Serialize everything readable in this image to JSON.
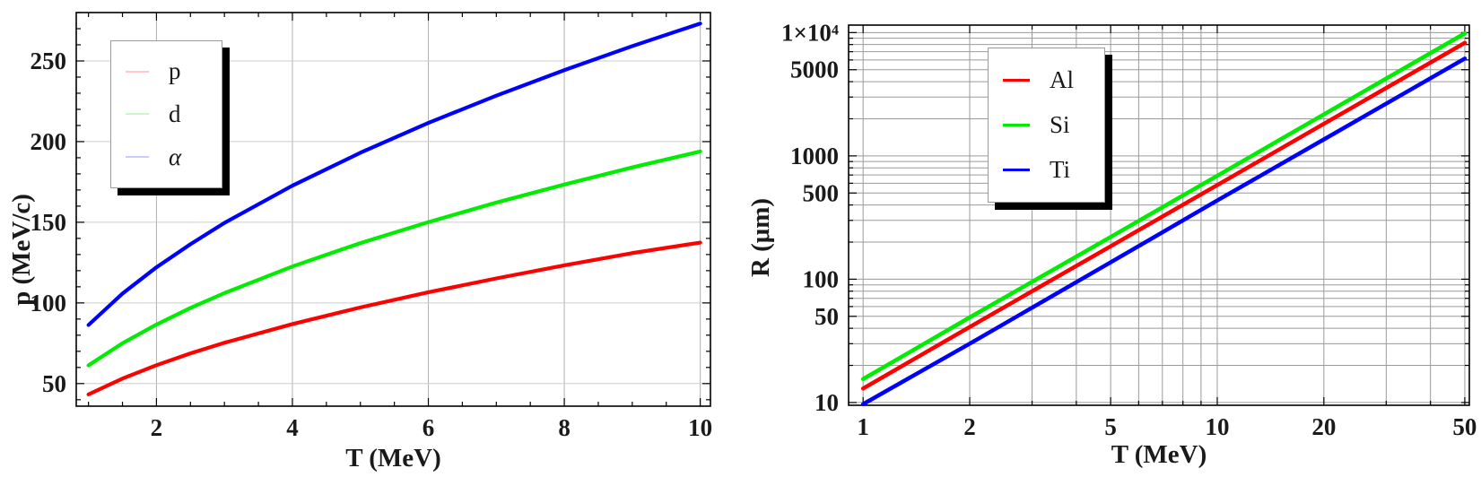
{
  "figure": {
    "background": "#ffffff"
  },
  "chart_data": [
    {
      "id": "momentum-vs-kinetic-energy",
      "type": "line",
      "title": "",
      "xlabel": "T (MeV)",
      "ylabel": "p (MeV/c)",
      "xscale": "linear",
      "yscale": "linear",
      "xlim": [
        0.82,
        10.15
      ],
      "ylim": [
        36,
        280
      ],
      "xticks": {
        "values": [
          2,
          4,
          6,
          8,
          10
        ],
        "labels": [
          "2",
          "4",
          "6",
          "8",
          "10"
        ],
        "minor_step": 0.5
      },
      "yticks": {
        "values": [
          50,
          100,
          150,
          200,
          250
        ],
        "labels": [
          "50",
          "100",
          "150",
          "200",
          "250"
        ],
        "minor_step": 10
      },
      "grid": {
        "on": true,
        "minor": false,
        "vertical_color": "#b0b0b0",
        "horizontal_color": "#cccccc"
      },
      "frame_color": "#000000",
      "legend_position": "upper-left",
      "series": [
        {
          "name": "p",
          "color": "#ff0000",
          "legend_swatch": "#ffc9c9",
          "x": [
            1,
            1.5,
            2,
            2.5,
            3,
            4,
            5,
            6,
            7,
            8,
            9,
            10
          ],
          "y": [
            43.3,
            53.1,
            61.4,
            68.7,
            75.3,
            86.9,
            97.2,
            106.6,
            115.2,
            123.3,
            130.9,
            137.4
          ]
        },
        {
          "name": "d",
          "color": "#00ec00",
          "legend_swatch": "#c9f7c9",
          "x": [
            1,
            1.5,
            2,
            2.5,
            3,
            4,
            5,
            6,
            7,
            8,
            9,
            10
          ],
          "y": [
            61.3,
            75.0,
            86.6,
            96.9,
            106.1,
            122.6,
            137.1,
            150.1,
            162.2,
            173.4,
            184.0,
            193.9
          ]
        },
        {
          "name": "α",
          "color": "#0000ff",
          "legend_swatch": "#c9cdfb",
          "x": [
            1,
            1.5,
            2,
            2.5,
            3,
            4,
            5,
            6,
            7,
            8,
            9,
            10
          ],
          "y": [
            86.3,
            105.8,
            122.1,
            136.4,
            149.6,
            172.7,
            193.1,
            211.6,
            228.5,
            244.3,
            259.2,
            273.2
          ]
        }
      ]
    },
    {
      "id": "proton-range-vs-kinetic-energy",
      "type": "line",
      "title": "",
      "xlabel": "T (MeV)",
      "ylabel": "R (μm)",
      "xscale": "log",
      "yscale": "log",
      "xlim": [
        0.91,
        51.5
      ],
      "ylim": [
        9.5,
        11500
      ],
      "xticks": {
        "values": [
          1,
          2,
          5,
          10,
          20,
          50
        ],
        "labels": [
          "1",
          "2",
          "5",
          "10",
          "20",
          "50"
        ]
      },
      "yticks": {
        "values": [
          10,
          50,
          100,
          500,
          1000,
          5000,
          10000
        ],
        "labels": [
          "10",
          "50",
          "100",
          "500",
          "1000",
          "5000",
          "1×10⁴"
        ]
      },
      "grid": {
        "on": true,
        "minor": true,
        "vertical_color": "#9a9a9a",
        "horizontal_color": "#9a9a9a"
      },
      "frame_color": "#000000",
      "legend_position": "upper-middle",
      "series": [
        {
          "name": "Al",
          "color": "#ff0000",
          "legend_swatch": "#ff0000",
          "x": [
            1,
            2,
            5,
            10,
            20,
            50
          ],
          "y": [
            13,
            41,
            185,
            580,
            1820,
            8260
          ]
        },
        {
          "name": "Si",
          "color": "#00ec00",
          "legend_swatch": "#00ec00",
          "x": [
            1,
            2,
            5,
            10,
            20,
            50
          ],
          "y": [
            15.5,
            49,
            220,
            690,
            2170,
            9850
          ]
        },
        {
          "name": "Ti",
          "color": "#0000ff",
          "legend_swatch": "#0000ff",
          "x": [
            1,
            2,
            5,
            10,
            20,
            50
          ],
          "y": [
            9.7,
            30,
            137,
            435,
            1360,
            6160
          ]
        }
      ]
    }
  ]
}
